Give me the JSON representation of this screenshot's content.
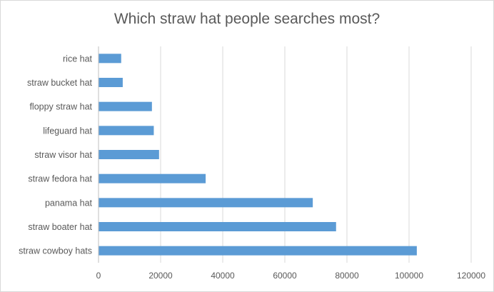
{
  "chart_data": {
    "type": "bar",
    "orientation": "horizontal",
    "title": "Which straw hat people searches most?",
    "categories": [
      "straw cowboy hats",
      "straw boater hat",
      "panama hat",
      "straw fedora hat",
      "straw visor hat",
      "lifeguard hat",
      "floppy straw hat",
      "straw bucket hat",
      "rice hat"
    ],
    "values": [
      102500,
      76500,
      69000,
      34500,
      19500,
      17800,
      17200,
      7800,
      7300
    ],
    "xlim": [
      0,
      120000
    ],
    "xticks": [
      "0",
      "20000",
      "40000",
      "60000",
      "80000",
      "100000",
      "120000"
    ],
    "grid": "vertical",
    "bar_color": "#5b9bd5"
  }
}
